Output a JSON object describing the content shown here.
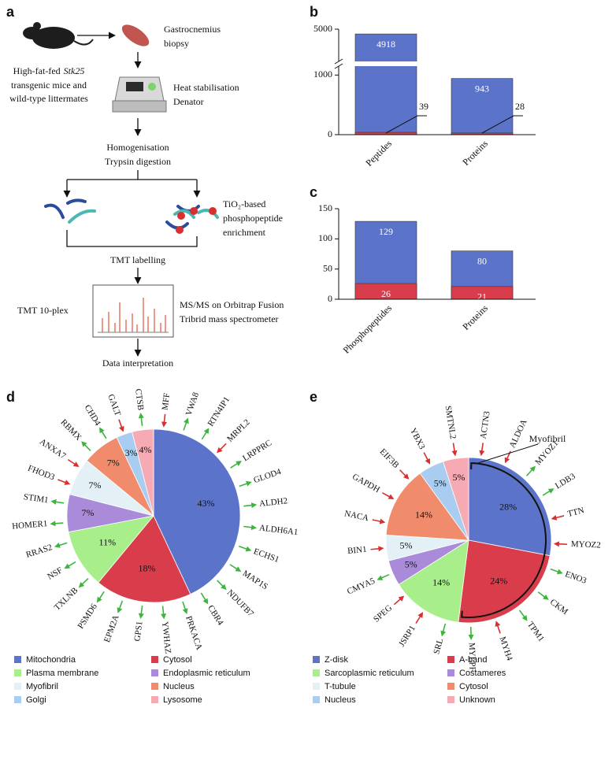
{
  "workflow": {
    "panel": "a",
    "mice_label": [
      "High-fat-fed",
      "Stk25",
      "transgenic mice and",
      "wild-type littermates"
    ],
    "biopsy": [
      "Gastrocnemius",
      "biopsy"
    ],
    "heat": [
      "Heat stabilisation",
      "Denator"
    ],
    "homogenisation": [
      "Homogenisation",
      "Trypsin digestion"
    ],
    "enrichment": [
      "TiO₂-based",
      "phosphopeptide",
      "enrichment"
    ],
    "labelling": "TMT labelling",
    "plex": "TMT 10-plex",
    "ms": [
      "MS/MS on Orbitrap Fusion",
      "Tribrid mass spectrometer"
    ],
    "final": "Data interpretation"
  },
  "chart_data": [
    {
      "panel": "b",
      "type": "bar",
      "overlay": true,
      "categories": [
        "Peptides",
        "Proteins"
      ],
      "series": [
        {
          "color": "#5b74c9",
          "values": [
            4918,
            943
          ]
        },
        {
          "color": "#d93d4b",
          "values": [
            39,
            28
          ],
          "callout": true
        }
      ],
      "ylim": [
        0,
        5000
      ],
      "axis_break": [
        1150,
        4450
      ],
      "yticks": [
        0,
        1000,
        5000
      ]
    },
    {
      "panel": "c",
      "type": "bar",
      "overlay": true,
      "categories": [
        "Phosphopeptides",
        "Proteins"
      ],
      "series": [
        {
          "color": "#5b74c9",
          "values": [
            129,
            80
          ]
        },
        {
          "color": "#d93d4b",
          "values": [
            26,
            21
          ]
        }
      ],
      "ylim": [
        0,
        150
      ],
      "yticks": [
        0,
        50,
        100,
        150
      ]
    },
    {
      "panel": "d",
      "type": "pie",
      "categories": [
        "Mitochondria",
        "Cytosol",
        "Plasma membrane",
        "Endoplasmic reticulum",
        "Myofibril",
        "Nucleus",
        "Golgi",
        "Lysosome"
      ],
      "values": [
        43,
        18,
        11,
        7,
        7,
        7,
        3,
        4
      ],
      "value_labels": [
        "43%",
        "18%",
        "11%",
        "7%",
        "7%",
        "7%",
        "3%",
        "4%"
      ],
      "colors": [
        "#5b74c9",
        "#d93d4b",
        "#a8ef8c",
        "#a98bd9",
        "#e3f1f6",
        "#f08c6c",
        "#a9cdf0",
        "#f6aab3"
      ],
      "arrow_colors": {
        "up": "#3db53d",
        "down": "#d9302f"
      },
      "genes": [
        [
          {
            "name": "MFF",
            "dir": "down"
          },
          {
            "name": "VWA8",
            "dir": "up"
          },
          {
            "name": "RTN4IP1",
            "dir": "up"
          },
          {
            "name": "MRPL2",
            "dir": "down"
          },
          {
            "name": "LRPPRC",
            "dir": "up"
          },
          {
            "name": "GLOD4",
            "dir": "up"
          },
          {
            "name": "ALDH2",
            "dir": "up"
          },
          {
            "name": "ALDH6A1",
            "dir": "up"
          },
          {
            "name": "ECHS1",
            "dir": "up"
          },
          {
            "name": "MAP1S",
            "dir": "up"
          },
          {
            "name": "NDUFB7",
            "dir": "up"
          },
          {
            "name": "CBR4",
            "dir": "up"
          }
        ],
        [
          {
            "name": "PRKACA",
            "dir": "up"
          },
          {
            "name": "YWHAZ",
            "dir": "up"
          },
          {
            "name": "GPS1",
            "dir": "up"
          },
          {
            "name": "EPM2A",
            "dir": "up"
          },
          {
            "name": "PSMD6",
            "dir": "up"
          }
        ],
        [
          {
            "name": "TXLNB",
            "dir": "up"
          },
          {
            "name": "NSF",
            "dir": "up"
          },
          {
            "name": "RRAS2",
            "dir": "up"
          }
        ],
        [
          {
            "name": "HOMER1",
            "dir": "up"
          },
          {
            "name": "STIM1",
            "dir": "up"
          }
        ],
        [
          {
            "name": "FHOD3",
            "dir": "down"
          },
          {
            "name": "ANXA7",
            "dir": "down"
          }
        ],
        [
          {
            "name": "RBMX",
            "dir": "up"
          },
          {
            "name": "CHD4",
            "dir": "up"
          }
        ],
        [
          {
            "name": "GALT",
            "dir": "down"
          }
        ],
        [
          {
            "name": "CTSB",
            "dir": "up"
          }
        ]
      ]
    },
    {
      "panel": "e",
      "type": "pie",
      "categories": [
        "Z-disk",
        "A-band",
        "Sarcoplasmic reticulum",
        "Costameres",
        "T-tubule",
        "Cytosol",
        "Nucleus",
        "Unknown"
      ],
      "values": [
        28,
        24,
        14,
        5,
        5,
        14,
        5,
        5
      ],
      "value_labels": [
        "28%",
        "24%",
        "14%",
        "5%",
        "5%",
        "14%",
        "5%",
        "5%"
      ],
      "colors": [
        "#5b74c9",
        "#d93d4b",
        "#a8ef8c",
        "#a98bd9",
        "#e3f1f6",
        "#f08c6c",
        "#a9cdf0",
        "#f6aab3"
      ],
      "arrow_colors": {
        "up": "#3db53d",
        "down": "#d9302f"
      },
      "annotation": "Myofibril",
      "bracket": [
        0,
        1
      ],
      "genes": [
        [
          {
            "name": "ACTN3",
            "dir": "down"
          },
          {
            "name": "ALDOA",
            "dir": "down"
          },
          {
            "name": "MYOZ1",
            "dir": "up"
          },
          {
            "name": "LDB3",
            "dir": "up"
          },
          {
            "name": "TTN",
            "dir": "down"
          },
          {
            "name": "MYOZ2",
            "dir": "down"
          }
        ],
        [
          {
            "name": "ENO3",
            "dir": "up"
          },
          {
            "name": "CKM",
            "dir": "up"
          },
          {
            "name": "TPM1",
            "dir": "up"
          },
          {
            "name": "MYH4",
            "dir": "down"
          },
          {
            "name": "MYLPF",
            "dir": "up"
          }
        ],
        [
          {
            "name": "SRL",
            "dir": "up"
          },
          {
            "name": "JSRP1",
            "dir": "down"
          },
          {
            "name": "SPEG",
            "dir": "down"
          }
        ],
        [
          {
            "name": "CMYA5",
            "dir": "up"
          }
        ],
        [
          {
            "name": "BIN1",
            "dir": "down"
          }
        ],
        [
          {
            "name": "NACA",
            "dir": "down"
          },
          {
            "name": "GAPDH",
            "dir": "down"
          },
          {
            "name": "EIF3B",
            "dir": "down"
          }
        ],
        [
          {
            "name": "YBX3",
            "dir": "down"
          }
        ],
        [
          {
            "name": "SMTNL2",
            "dir": "down"
          }
        ]
      ]
    }
  ]
}
